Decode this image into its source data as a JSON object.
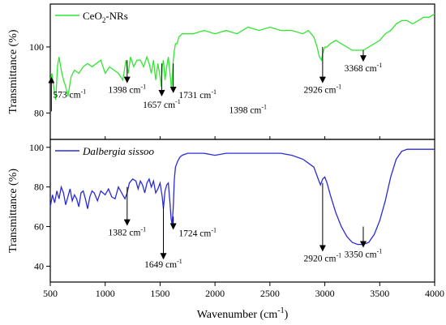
{
  "chart_data": [
    {
      "type": "line",
      "panel": "top",
      "ylabel": "Transmittance (%)",
      "ylim": [
        72,
        113
      ],
      "yticks": [
        80,
        100
      ],
      "legend": {
        "label_main": "CeO",
        "label_sub": "2",
        "label_tail": "-NRs",
        "placement": "top-left",
        "color": "#32e632"
      },
      "series": [
        {
          "name": "CeO2-NRs",
          "color": "#32e632",
          "x": [
            500,
            515,
            530,
            550,
            565,
            580,
            600,
            620,
            640,
            660,
            690,
            720,
            760,
            800,
            840,
            880,
            920,
            960,
            1000,
            1040,
            1080,
            1120,
            1160,
            1190,
            1210,
            1230,
            1260,
            1290,
            1320,
            1350,
            1380,
            1400,
            1420,
            1440,
            1460,
            1480,
            1500,
            1510,
            1520,
            1530,
            1545,
            1560,
            1575,
            1590,
            1605,
            1620,
            1630,
            1640,
            1655,
            1670,
            1700,
            1750,
            1800,
            1900,
            2000,
            2100,
            2200,
            2300,
            2400,
            2500,
            2600,
            2700,
            2800,
            2850,
            2900,
            2930,
            2950,
            2970,
            2980,
            2990,
            3000,
            3020,
            3050,
            3100,
            3150,
            3200,
            3250,
            3300,
            3350,
            3400,
            3450,
            3500,
            3550,
            3600,
            3650,
            3700,
            3750,
            3800,
            3850,
            3900,
            3950,
            4000
          ],
          "y": [
            90,
            92,
            88,
            84,
            94,
            97,
            93,
            90,
            88,
            85,
            91,
            93,
            92,
            94,
            95,
            94,
            95,
            96,
            92,
            94,
            93,
            92,
            90,
            96,
            92,
            97,
            94,
            96,
            96,
            94,
            97,
            95,
            92,
            96,
            90,
            95,
            91,
            88,
            94,
            96,
            90,
            94,
            97,
            92,
            87,
            96,
            99,
            101,
            101,
            103,
            104,
            104,
            104,
            105,
            104,
            105,
            104,
            106,
            105,
            106,
            105,
            105,
            104,
            105,
            103,
            100,
            97,
            96,
            98,
            99,
            100,
            100,
            101,
            102,
            101,
            100,
            99,
            99,
            99,
            100,
            101,
            102,
            104,
            105,
            107,
            108,
            108,
            107,
            108,
            109,
            109,
            110
          ]
        }
      ],
      "annotations": [
        {
          "x": 510,
          "tip_y": 90,
          "base_y": 80.5,
          "label": "573 cm",
          "dx": 2,
          "dy": 22,
          "anchor": "start"
        },
        {
          "x": 1200,
          "tip_y": 90,
          "base_y": 96,
          "label": "1398 cm",
          "dx": 0,
          "dy": 16,
          "anchor": "middle"
        },
        {
          "x": 1515,
          "tip_y": 86,
          "base_y": 95,
          "label": "1657 cm",
          "dx": 0,
          "dy": 18,
          "anchor": "middle"
        },
        {
          "x": 1620,
          "tip_y": 87,
          "base_y": 95,
          "label": "1731 cm",
          "dx": 30,
          "dy": 10,
          "anchor": "middle"
        },
        {
          "x": 2300,
          "tip_y": null,
          "base_y": null,
          "label": "1398 cm",
          "dx": 0,
          "dy": 0,
          "anchor": "middle",
          "text_y": 80
        },
        {
          "x": 2980,
          "tip_y": 90,
          "base_y": 100,
          "label": "2926 cm",
          "dx": 0,
          "dy": 16,
          "anchor": "middle"
        },
        {
          "x": 3350,
          "tip_y": 96.5,
          "base_y": 99,
          "label": "3368 cm",
          "dx": 0,
          "dy": 16,
          "anchor": "middle"
        }
      ]
    },
    {
      "type": "line",
      "panel": "bottom",
      "ylabel": "Transmittance (%)",
      "xlabel": "Wavenumber (cm",
      "xlabel_sup": "-1",
      "xlabel_tail": ")",
      "xlim": [
        500,
        4000
      ],
      "xticks": [
        500,
        1000,
        1500,
        2000,
        2500,
        3000,
        3500,
        4000
      ],
      "ylim": [
        32,
        104
      ],
      "yticks": [
        40,
        60,
        80,
        100
      ],
      "legend": {
        "label": "Dalbergia sissoo",
        "placement": "top-left",
        "color": "#2b2bd6"
      },
      "series": [
        {
          "name": "Dalbergia sissoo",
          "color": "#2b2bd6",
          "x": [
            500,
            520,
            540,
            560,
            580,
            600,
            620,
            640,
            660,
            680,
            700,
            720,
            740,
            760,
            780,
            800,
            820,
            840,
            860,
            880,
            900,
            930,
            960,
            1000,
            1030,
            1060,
            1090,
            1120,
            1150,
            1180,
            1200,
            1220,
            1250,
            1280,
            1300,
            1320,
            1340,
            1360,
            1380,
            1400,
            1420,
            1440,
            1460,
            1480,
            1500,
            1520,
            1530,
            1545,
            1560,
            1575,
            1590,
            1600,
            1610,
            1620,
            1630,
            1640,
            1660,
            1680,
            1700,
            1750,
            1800,
            1900,
            2000,
            2100,
            2200,
            2300,
            2400,
            2500,
            2600,
            2700,
            2800,
            2850,
            2900,
            2940,
            2960,
            2980,
            3000,
            3020,
            3050,
            3100,
            3150,
            3200,
            3250,
            3300,
            3350,
            3400,
            3450,
            3500,
            3550,
            3600,
            3650,
            3700,
            3750,
            3800,
            3850,
            3900,
            3950,
            4000
          ],
          "y": [
            70,
            76,
            72,
            78,
            74,
            80,
            77,
            71,
            75,
            79,
            73,
            76,
            74,
            70,
            77,
            78,
            74,
            69,
            75,
            78,
            77,
            73,
            78,
            76,
            79,
            75,
            74,
            80,
            77,
            74,
            77,
            82,
            84,
            83,
            79,
            83,
            81,
            77,
            82,
            84,
            80,
            83,
            77,
            79,
            82,
            75,
            69,
            78,
            81,
            82,
            72,
            64,
            61,
            70,
            84,
            90,
            93,
            95,
            96,
            97,
            97,
            97,
            96,
            97,
            97,
            97,
            97,
            97,
            97,
            96,
            94,
            92,
            90,
            84,
            81,
            84,
            85,
            82,
            76,
            67,
            60,
            55,
            52,
            51,
            51,
            52,
            56,
            63,
            73,
            85,
            94,
            98,
            99,
            99,
            99,
            99,
            99,
            99
          ]
        }
      ],
      "annotations": [
        {
          "x": 1200,
          "tip_y": 62,
          "base_y": 80,
          "label": "1382 cm",
          "dx": 0,
          "dy": 16,
          "anchor": "middle"
        },
        {
          "x": 1530,
          "tip_y": 45,
          "base_y": 70,
          "label": "1649 cm",
          "dx": 0,
          "dy": 14,
          "anchor": "middle"
        },
        {
          "x": 1620,
          "tip_y": 60,
          "base_y": 65,
          "label": "1724 cm",
          "dx": 30,
          "dy": 12,
          "anchor": "middle"
        },
        {
          "x": 2980,
          "tip_y": 49,
          "base_y": 82,
          "label": "2920 cm",
          "dx": 0,
          "dy": 16,
          "anchor": "middle"
        },
        {
          "x": 3350,
          "tip_y": 51,
          "base_y": 60,
          "label": "3350 cm",
          "dx": 0,
          "dy": 16,
          "anchor": "middle",
          "tip_offset": true
        }
      ]
    }
  ]
}
